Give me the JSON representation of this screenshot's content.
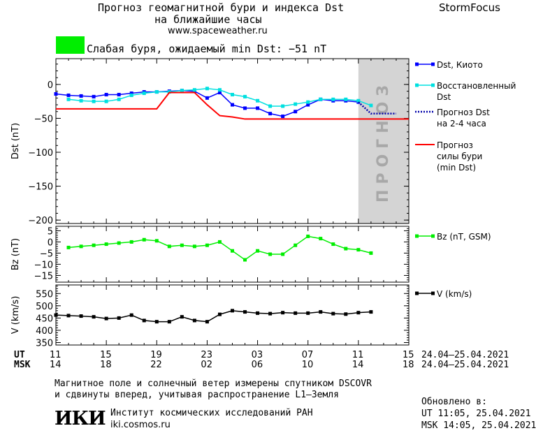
{
  "header": {
    "title_line1": "Прогноз геомагнитной бури и индекса Dst",
    "title_line2": "на ближайшие часы",
    "url": "www.spaceweather.ru",
    "brand": "StormFocus",
    "status_color": "#00ee00",
    "status_text": "Слабая буря, ожидаемый min Dst: −51 nT"
  },
  "chart_data": [
    {
      "type": "line",
      "ylabel": "Dst (nT)",
      "ylim": [
        -205,
        38
      ],
      "yticks": [
        "0",
        "−50",
        "−100",
        "−150",
        "−200"
      ],
      "ytick_values": [
        0,
        -50,
        -100,
        -150,
        -200
      ],
      "x_unit": "hours from 11 UT 24.04.2021",
      "xlim": [
        0,
        28
      ],
      "forecast_region": [
        24,
        28
      ],
      "forecast_label": "ПРОГНОЗ",
      "series": [
        {
          "name": "Dst, Киото",
          "color": "#0000ff",
          "x": [
            0,
            1,
            2,
            3,
            4,
            5,
            6,
            7,
            8,
            9,
            10,
            11,
            12,
            13,
            14,
            15,
            16,
            17,
            18,
            19,
            20,
            21,
            22,
            23,
            24
          ],
          "values": [
            -14,
            -16,
            -17,
            -18,
            -15,
            -15,
            -13,
            -11,
            -11,
            -10,
            -9,
            -10,
            -20,
            -12,
            -30,
            -35,
            -35,
            -43,
            -47,
            -40,
            -30,
            -22,
            -24,
            -24,
            -26
          ]
        },
        {
          "name": "Восстановленный Dst",
          "color": "#00e0e0",
          "x": [
            1,
            2,
            3,
            4,
            5,
            6,
            7,
            8,
            9,
            10,
            11,
            12,
            13,
            14,
            15,
            16,
            17,
            18,
            19,
            20,
            21,
            22,
            23,
            24,
            25
          ],
          "values": [
            -22,
            -24,
            -25,
            -25,
            -22,
            -16,
            -13,
            -11,
            -11,
            -9,
            -8,
            -6,
            -8,
            -15,
            -18,
            -24,
            -32,
            -32,
            -29,
            -26,
            -22,
            -22,
            -22,
            -24,
            -31
          ]
        },
        {
          "name": "Прогноз Dst на 2-4 часа",
          "color": "#0000aa",
          "x": [
            24,
            25,
            26,
            27
          ],
          "values": [
            -26,
            -43,
            -43,
            -43
          ]
        },
        {
          "name": "Прогноз силы бури (min Dst)",
          "color": "#ff0000",
          "x": [
            0,
            8,
            9,
            10,
            11,
            12,
            13,
            14,
            15,
            16,
            17,
            18,
            19,
            20,
            21,
            22,
            23,
            24,
            25,
            26,
            27,
            28
          ],
          "values": [
            -36,
            -36,
            -12,
            -12,
            -12,
            -30,
            -46,
            -48,
            -51,
            -51,
            -51,
            -51,
            -51,
            -51,
            -51,
            -51,
            -51,
            -51,
            -51,
            -51,
            -51,
            -51
          ]
        }
      ]
    },
    {
      "type": "line",
      "ylabel": "Bz (nT)",
      "ylim": [
        -18,
        7
      ],
      "yticks": [
        "5",
        "0",
        "−5",
        "−10",
        "−15"
      ],
      "ytick_values": [
        5,
        0,
        -5,
        -10,
        -15
      ],
      "xlim": [
        0,
        28
      ],
      "series": [
        {
          "name": "Bz (nT, GSM)",
          "color": "#00ee00",
          "x": [
            1,
            2,
            3,
            4,
            5,
            6,
            7,
            8,
            9,
            10,
            11,
            12,
            13,
            14,
            15,
            16,
            17,
            18,
            19,
            20,
            21,
            22,
            23,
            24,
            25
          ],
          "values": [
            -2.5,
            -2,
            -1.5,
            -1,
            -0.5,
            0,
            1,
            0.5,
            -2,
            -1.5,
            -2,
            -1.5,
            0,
            -4,
            -8,
            -4,
            -5.5,
            -5.5,
            -1.5,
            2.5,
            1.5,
            -1,
            -3,
            -3.5,
            -5
          ]
        }
      ]
    },
    {
      "type": "line",
      "ylabel": "V (km/s)",
      "ylim": [
        340,
        585
      ],
      "yticks": [
        "550",
        "500",
        "450",
        "400",
        "350"
      ],
      "ytick_values": [
        550,
        500,
        450,
        400,
        350
      ],
      "xlim": [
        0,
        28
      ],
      "series": [
        {
          "name": "V (km/s)",
          "color": "#000000",
          "x": [
            0,
            1,
            2,
            3,
            4,
            5,
            6,
            7,
            8,
            9,
            10,
            11,
            12,
            13,
            14,
            15,
            16,
            17,
            18,
            19,
            20,
            21,
            22,
            23,
            24,
            25
          ],
          "values": [
            462,
            460,
            458,
            455,
            448,
            450,
            462,
            440,
            435,
            435,
            455,
            440,
            435,
            465,
            480,
            475,
            470,
            468,
            472,
            470,
            470,
            475,
            468,
            466,
            472,
            475
          ]
        }
      ]
    }
  ],
  "xaxis": {
    "ut_label": "UT",
    "msk_label": "MSK",
    "ut_ticks": [
      "11",
      "15",
      "19",
      "23",
      "03",
      "07",
      "11",
      "15"
    ],
    "msk_ticks": [
      "14",
      "18",
      "22",
      "02",
      "06",
      "10",
      "14",
      "18"
    ],
    "date_range": "24.04–25.04.2021"
  },
  "footer": {
    "note_line1": "Магнитное поле и солнечный ветер измерены спутником DSCOVR",
    "note_line2": "и сдвинуты вперед, учитывая распространение L1–Земля",
    "logo": "ИКИ",
    "institute": "Институт космических исследований РАН",
    "site": "iki.cosmos.ru",
    "updated_label": "Обновлено в:",
    "updated_ut": "UT  11:05, 25.04.2021",
    "updated_msk": "MSK 14:05, 25.04.2021"
  }
}
